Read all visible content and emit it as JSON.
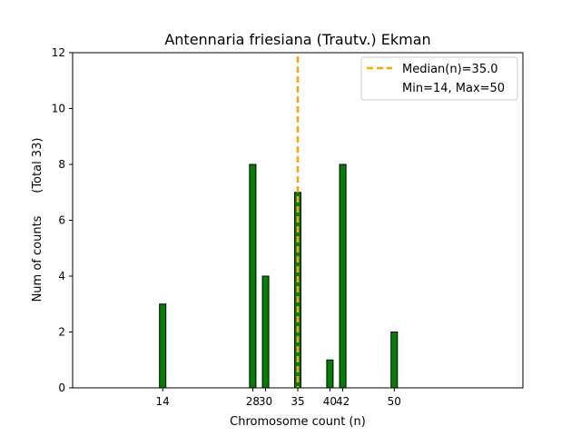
{
  "chart_data": {
    "type": "bar",
    "title": "Antennaria friesiana (Trautv.) Ekman",
    "xlabel": "Chromosome count (n)",
    "ylabel": "Num of counts      (Total 33)",
    "x": [
      14,
      28,
      30,
      35,
      40,
      42,
      50
    ],
    "values": [
      3,
      8,
      4,
      7,
      1,
      8,
      2
    ],
    "xticks": [
      14,
      28,
      30,
      35,
      40,
      42,
      50
    ],
    "yticks": [
      0,
      2,
      4,
      6,
      8,
      10,
      12
    ],
    "xlim": [
      0,
      70
    ],
    "ylim": [
      0,
      12
    ],
    "bar_color": "#008000",
    "bar_edge_color": "#000000",
    "median": 35.0,
    "median_color": "#ffa500",
    "legend": {
      "placement": "top-right",
      "entries": [
        "Median(n)=35.0",
        "Min=14, Max=50"
      ]
    },
    "grid": false
  }
}
